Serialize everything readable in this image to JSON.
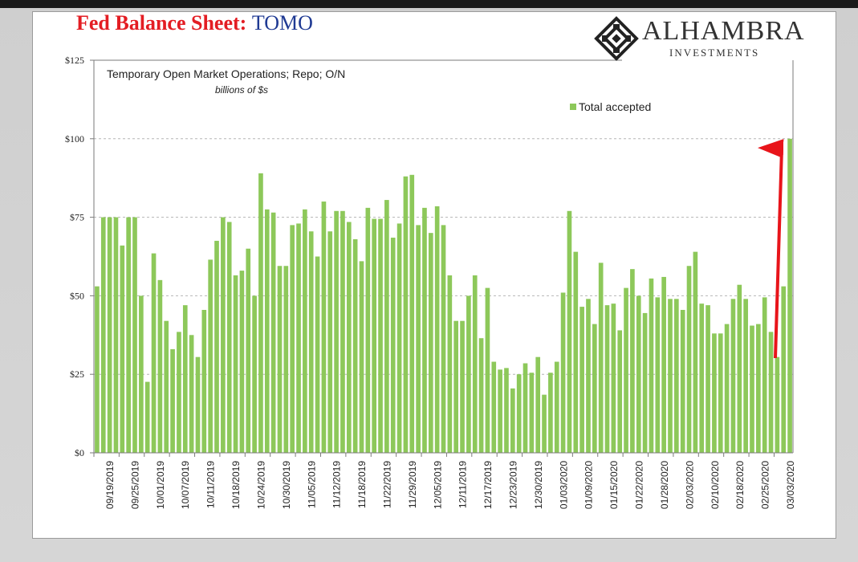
{
  "title": {
    "main": "Fed Balance Sheet",
    "colon": ":",
    "sub": "TOMO"
  },
  "logo": {
    "line1": "ALHAMBRA",
    "line2": "INVESTMENTS",
    "icon": "diamond-knot-icon"
  },
  "colors": {
    "bar": "#8dc85a",
    "arrow": "#e8141a",
    "title_red": "#e31d23",
    "title_blue": "#1f3a93"
  },
  "chart_data": {
    "type": "bar",
    "title": "Temporary Open Market Operations; Repo; O/N",
    "subtitle": "billions of $s",
    "ylabel": "",
    "xlabel": "",
    "ylim": [
      0,
      125
    ],
    "yticks": [
      "$0",
      "$25",
      "$50",
      "$75",
      "$100",
      "$125"
    ],
    "ytick_values": [
      0,
      25,
      50,
      75,
      100,
      125
    ],
    "grid": "horizontal dashed",
    "legend": "top-right",
    "series": [
      {
        "name": "Total accepted",
        "values": [
          53,
          75,
          75,
          75,
          66,
          75,
          75,
          50,
          22.6,
          63.5,
          55,
          42,
          33,
          38.5,
          47,
          37.5,
          30.5,
          45.5,
          61.5,
          67.5,
          75,
          73.5,
          56.5,
          58,
          65,
          50,
          89,
          77.5,
          76.5,
          59.5,
          59.5,
          72.5,
          73,
          77.5,
          70.5,
          62.5,
          80,
          70.5,
          77,
          77,
          73.5,
          68,
          61,
          78,
          74.5,
          74.5,
          80.5,
          68.5,
          73,
          88,
          88.5,
          72.5,
          78,
          70,
          78.5,
          72.5,
          56.5,
          42,
          42,
          50,
          56.5,
          36.5,
          52.5,
          29,
          26.5,
          27,
          20.5,
          25,
          28.5,
          25.5,
          30.5,
          18.5,
          25.5,
          29,
          51,
          77,
          64,
          46.5,
          49,
          41,
          60.5,
          47,
          47.5,
          39,
          52.5,
          58.5,
          50,
          44.5,
          55.5,
          49.5,
          56,
          49,
          49,
          45.5,
          59.5,
          64,
          47.5,
          47,
          38,
          38,
          41,
          49,
          53.5,
          49,
          40.5,
          41,
          49.5,
          38.5,
          30.5,
          53,
          100
        ]
      }
    ],
    "x_tick_labels": [
      "09/19/2019",
      "09/25/2019",
      "10/01/2019",
      "10/07/2019",
      "10/11/2019",
      "10/18/2019",
      "10/24/2019",
      "10/30/2019",
      "11/05/2019",
      "11/12/2019",
      "11/18/2019",
      "11/22/2019",
      "11/29/2019",
      "12/05/2019",
      "12/11/2019",
      "12/17/2019",
      "12/23/2019",
      "12/30/2019",
      "01/03/2020",
      "01/09/2020",
      "01/15/2020",
      "01/22/2020",
      "01/28/2020",
      "02/03/2020",
      "02/10/2020",
      "02/18/2020",
      "02/25/2020",
      "03/03/2020"
    ]
  }
}
